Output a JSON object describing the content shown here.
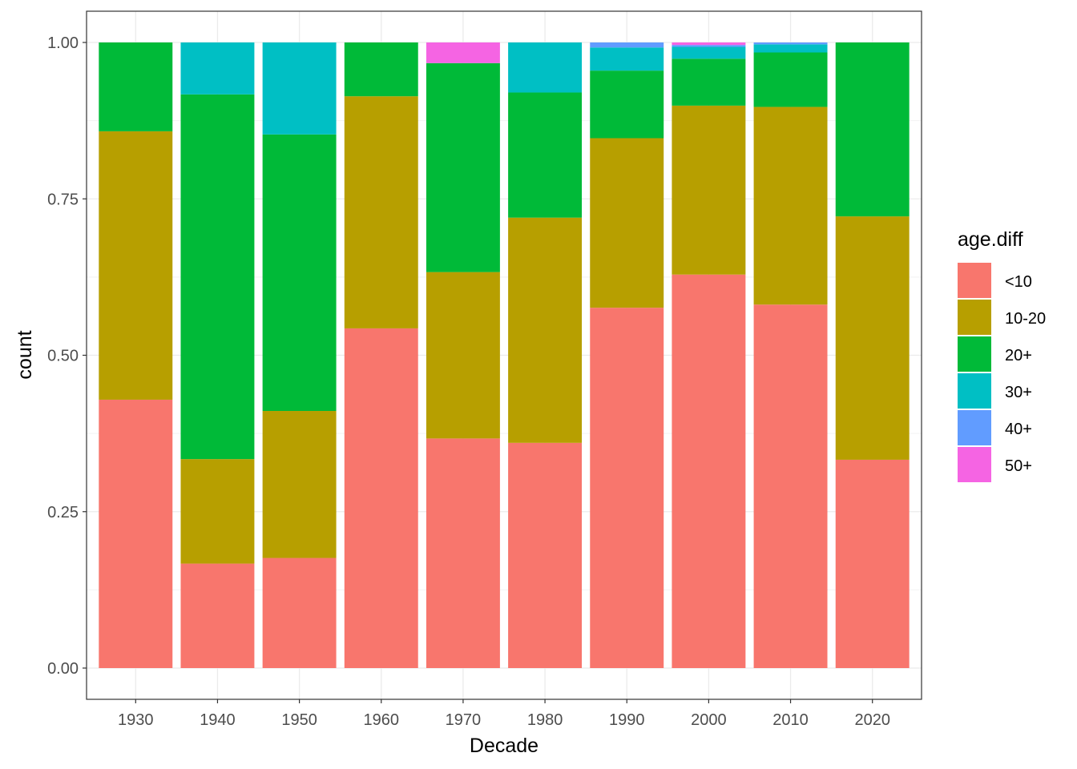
{
  "chart_data": {
    "type": "bar",
    "stacked": "fill",
    "xlabel": "Decade",
    "ylabel": "count",
    "ylim": [
      0,
      1
    ],
    "y_ticks": [
      "0.00",
      "0.25",
      "0.50",
      "0.75",
      "1.00"
    ],
    "y_tick_values": [
      0,
      0.25,
      0.5,
      0.75,
      1
    ],
    "grid": true,
    "legend": {
      "title": "age.diff",
      "placement": "right"
    },
    "categories": [
      "1930",
      "1940",
      "1950",
      "1960",
      "1970",
      "1980",
      "1990",
      "2000",
      "2010",
      "2020"
    ],
    "series": [
      {
        "name": "<10",
        "color": "#F8766D",
        "values": [
          0.429,
          0.167,
          0.176,
          0.543,
          0.367,
          0.36,
          0.576,
          0.629,
          0.581,
          0.333
        ]
      },
      {
        "name": "10-20",
        "color": "#B79F00",
        "values": [
          0.429,
          0.167,
          0.235,
          0.371,
          0.266,
          0.36,
          0.271,
          0.27,
          0.316,
          0.389
        ]
      },
      {
        "name": "20+",
        "color": "#00BA38",
        "values": [
          0.142,
          0.583,
          0.442,
          0.086,
          0.334,
          0.2,
          0.108,
          0.075,
          0.087,
          0.278
        ]
      },
      {
        "name": "30+",
        "color": "#00BFC4",
        "values": [
          0.0,
          0.083,
          0.147,
          0.0,
          0.0,
          0.08,
          0.037,
          0.019,
          0.013,
          0.0
        ]
      },
      {
        "name": "40+",
        "color": "#619CFF",
        "values": [
          0.0,
          0.0,
          0.0,
          0.0,
          0.0,
          0.0,
          0.008,
          0.003,
          0.003,
          0.0
        ]
      },
      {
        "name": "50+",
        "color": "#F564E3",
        "values": [
          0.0,
          0.0,
          0.0,
          0.0,
          0.033,
          0.0,
          0.0,
          0.004,
          0.0,
          0.0
        ]
      }
    ]
  }
}
